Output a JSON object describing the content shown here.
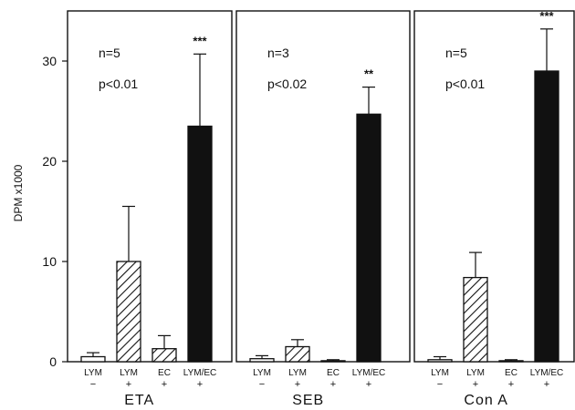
{
  "chart_data": {
    "type": "bar",
    "ylabel": "DPM x1000",
    "ylim": [
      0,
      35
    ],
    "yticks": [
      "0",
      "10",
      "20",
      "30"
    ],
    "category_labels": [
      {
        "name": "LYM",
        "sign": "−"
      },
      {
        "name": "LYM",
        "sign": "+"
      },
      {
        "name": "EC",
        "sign": "+"
      },
      {
        "name": "LYM/EC",
        "sign": "+"
      }
    ],
    "fills": [
      "white",
      "hatched",
      "hatched",
      "black"
    ],
    "panels": [
      {
        "title": "ETA",
        "n": "n=5",
        "p": "p<0.01",
        "values": [
          0.5,
          10.0,
          1.3,
          23.5
        ],
        "errors": [
          0.4,
          5.5,
          1.3,
          7.2
        ],
        "significance": [
          "",
          "",
          "",
          "***"
        ]
      },
      {
        "title": "SEB",
        "n": "n=3",
        "p": "p<0.02",
        "values": [
          0.3,
          1.5,
          0.1,
          24.7
        ],
        "errors": [
          0.3,
          0.7,
          0.1,
          2.7
        ],
        "significance": [
          "",
          "",
          "",
          "**"
        ]
      },
      {
        "title": "Con A",
        "n": "n=5",
        "p": "p<0.01",
        "values": [
          0.2,
          8.4,
          0.1,
          29.0
        ],
        "errors": [
          0.3,
          2.5,
          0.1,
          4.2
        ],
        "significance": [
          "",
          "",
          "",
          "***"
        ]
      }
    ]
  }
}
